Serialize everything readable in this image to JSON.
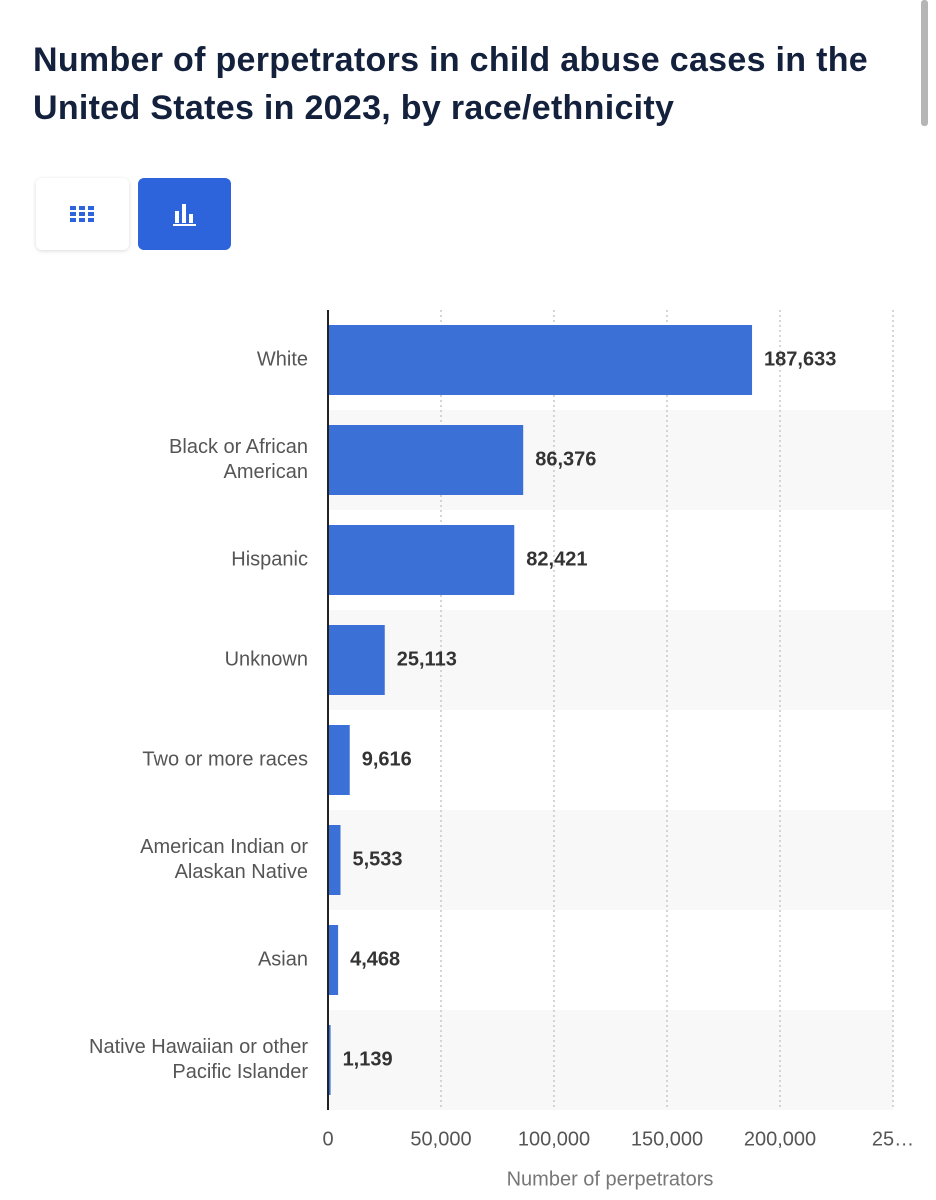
{
  "chart_data": {
    "type": "bar",
    "orientation": "horizontal",
    "title": "Number of perpetrators in child abuse cases in the United States in 2023, by race/ethnicity",
    "categories": [
      "White",
      "Black or African\nAmerican",
      "Hispanic",
      "Unknown",
      "Two or more races",
      "American Indian or\nAlaskan Native",
      "Asian",
      "Native Hawaiian or other\nPacific Islander"
    ],
    "values": [
      187633,
      86376,
      82421,
      25113,
      9616,
      5533,
      4468,
      1139
    ],
    "value_labels": [
      "187,633",
      "86,376",
      "82,421",
      "25,113",
      "9,616",
      "5,533",
      "4,468",
      "1,139"
    ],
    "color": "#3b71d7",
    "xlim": [
      0,
      250000
    ],
    "xticks": [
      0,
      {
        "value": 50000,
        "label": "50,000"
      },
      {
        "value": 100000,
        "label": "100,000"
      },
      {
        "value": 150000,
        "label": "150,000"
      },
      {
        "value": 200000,
        "label": "200,000"
      },
      {
        "value": 250000,
        "label": "25…"
      }
    ],
    "xlabel": "Number of perpetrators",
    "grid": true
  }
}
